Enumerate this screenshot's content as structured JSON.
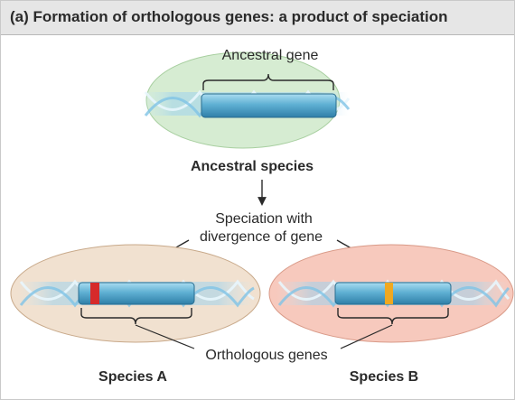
{
  "header": {
    "title": "(a) Formation of orthologous genes: a product of speciation"
  },
  "diagram": {
    "ancestral_gene_label": "Ancestral gene",
    "ancestral_species_label": "Ancestral species",
    "speciation_line1": "Speciation with",
    "speciation_line2": "divergence of gene",
    "orthologous_label": "Orthologous genes",
    "species_a_label": "Species A",
    "species_b_label": "Species B"
  },
  "colors": {
    "ancestral_ellipse": "#d6ecd2",
    "species_a_ellipse": "#f1e1d0",
    "species_b_ellipse": "#f7c9bd",
    "gene_body": "#5fb0d3",
    "species_a_marker": "#d62a2a",
    "species_b_marker": "#f0a820"
  }
}
